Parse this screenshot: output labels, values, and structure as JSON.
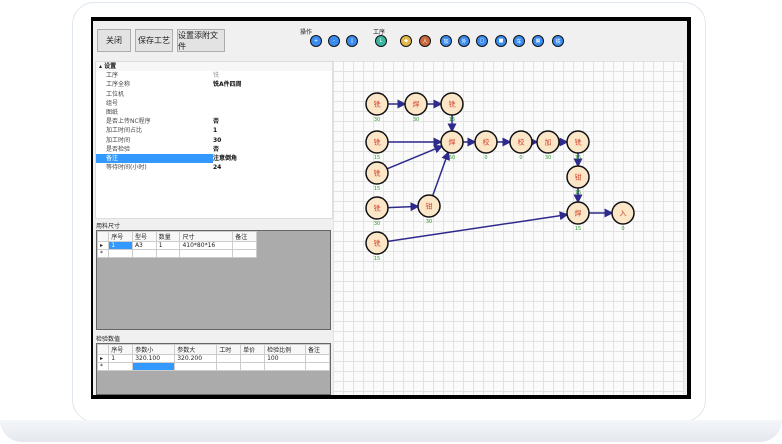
{
  "toolbar": {
    "close": "关闭",
    "save": "保存工艺",
    "attach": "设置添附文件",
    "group_ops": "操作",
    "group_proc": "工序",
    "op_buttons": [
      {
        "icon": "plus-icon",
        "glyph": "+"
      },
      {
        "icon": "minus-icon",
        "glyph": "-"
      },
      {
        "icon": "clipboard-icon",
        "glyph": "▯"
      }
    ],
    "proc_buttons": [
      {
        "icon": "proc-L-icon",
        "glyph": "L",
        "color": "#3bb6a0"
      },
      {
        "icon": "proc-gold-icon",
        "glyph": "◆",
        "color": "#e2b84a"
      },
      {
        "icon": "proc-up-icon",
        "glyph": "人",
        "color": "#c8683c"
      },
      {
        "icon": "proc-add-icon",
        "glyph": "加",
        "color": "#3b8cf0"
      },
      {
        "icon": "proc-outsource-icon",
        "glyph": "外",
        "color": "#3b8cf0"
      },
      {
        "icon": "proc-box-icon",
        "glyph": "□",
        "color": "#3b8cf0"
      },
      {
        "icon": "proc-screen-icon",
        "glyph": "■",
        "color": "#3b8cf0"
      },
      {
        "icon": "proc-cut-icon",
        "glyph": "车",
        "color": "#3b8cf0"
      },
      {
        "icon": "proc-grid-icon",
        "glyph": "▦",
        "color": "#3b8cf0"
      },
      {
        "icon": "proc-mill-icon",
        "glyph": "铣",
        "color": "#3b8cf0"
      }
    ]
  },
  "properties": {
    "section": "设置",
    "rows": [
      {
        "k": "工序",
        "v": "铣",
        "dim": true
      },
      {
        "k": "工序全称",
        "v": "铣A件四周"
      },
      {
        "k": "工位机",
        "v": ""
      },
      {
        "k": "组号",
        "v": ""
      },
      {
        "k": "图纸",
        "v": ""
      },
      {
        "k": "是否上传NC程序",
        "v": "否"
      },
      {
        "k": "加工时间占比",
        "v": "1"
      },
      {
        "k": "加工时间",
        "v": "30"
      },
      {
        "k": "是否检验",
        "v": "否"
      },
      {
        "k": "备注",
        "v": "注意倒角",
        "sel": true
      },
      {
        "k": "等待时间(小时)",
        "v": "24"
      }
    ]
  },
  "materials": {
    "title": "用料尺寸",
    "columns": [
      "",
      "序号",
      "型号",
      "数量",
      "尺寸",
      "备注"
    ],
    "rows": [
      [
        "▸",
        "1",
        "A3",
        "1",
        "410*80*16",
        ""
      ],
      [
        "*",
        "",
        "",
        "",
        "",
        ""
      ]
    ]
  },
  "inspection": {
    "title": "检验数值",
    "columns": [
      "",
      "序号",
      "参数小",
      "参数大",
      "工时",
      "单价",
      "检验比例",
      "备注"
    ],
    "rows": [
      [
        "▸",
        "1",
        "320.100",
        "320.200",
        "",
        "",
        "100",
        ""
      ],
      [
        "*",
        "",
        "",
        "",
        "",
        "",
        "",
        ""
      ]
    ]
  },
  "flow": {
    "nodes": [
      {
        "id": "a",
        "label": "铣",
        "value": "30"
      },
      {
        "id": "b",
        "label": "焊",
        "value": "30"
      },
      {
        "id": "c",
        "label": "铣",
        "value": "15"
      },
      {
        "id": "d",
        "label": "铣",
        "value": "15"
      },
      {
        "id": "e",
        "label": "焊",
        "value": "60"
      },
      {
        "id": "f",
        "label": "校",
        "value": "0"
      },
      {
        "id": "g",
        "label": "校",
        "value": "0"
      },
      {
        "id": "h",
        "label": "加",
        "value": "30"
      },
      {
        "id": "i",
        "label": "铣",
        "value": "15"
      },
      {
        "id": "j",
        "label": "铣",
        "value": "15"
      },
      {
        "id": "k",
        "label": "铣",
        "value": "30"
      },
      {
        "id": "l",
        "label": "钳",
        "value": "30"
      },
      {
        "id": "m",
        "label": "钳",
        "value": "15"
      },
      {
        "id": "n",
        "label": "焊",
        "value": "15"
      },
      {
        "id": "o",
        "label": "入",
        "value": "0"
      },
      {
        "id": "p",
        "label": "铣",
        "value": "15"
      }
    ],
    "edges": [
      [
        "a",
        "b"
      ],
      [
        "b",
        "c"
      ],
      [
        "c",
        "e"
      ],
      [
        "d",
        "e"
      ],
      [
        "j",
        "e"
      ],
      [
        "l",
        "e"
      ],
      [
        "k",
        "l"
      ],
      [
        "e",
        "f"
      ],
      [
        "f",
        "g"
      ],
      [
        "g",
        "h"
      ],
      [
        "h",
        "i"
      ],
      [
        "i",
        "m"
      ],
      [
        "m",
        "n"
      ],
      [
        "p",
        "n"
      ],
      [
        "n",
        "o"
      ]
    ],
    "colors": {
      "edge": "#2e2a8c",
      "label": "#d0402a",
      "value": "#2a9a2a"
    }
  }
}
